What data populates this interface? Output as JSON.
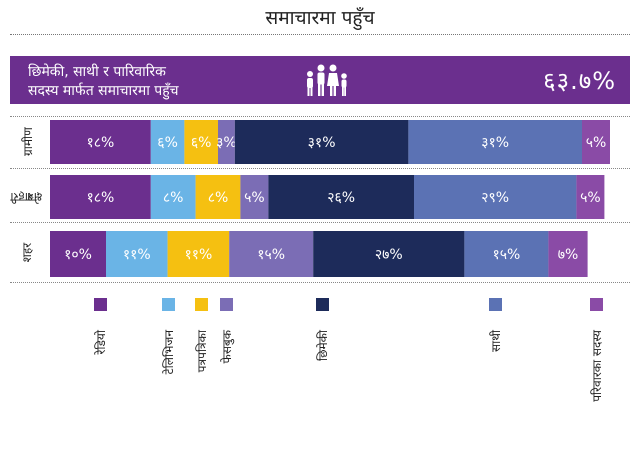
{
  "title": "समाचारमा पहुँच",
  "banner": {
    "line1": "छिमेकी, साथी र पारिवारिक",
    "line2": "सदस्य मार्फत समाचारमा पहुँच",
    "value_text": "६३.७%",
    "icon": "family-icon",
    "color": "#6b2f8e"
  },
  "chart_data": {
    "type": "bar",
    "orientation": "horizontal",
    "stacked": true,
    "categories": [
      "ग्रामीण",
      "शहरी क्षेत्र",
      "शहर"
    ],
    "series": [
      {
        "name": "रेडियो",
        "color": "#6b2f8e",
        "values": [
          18,
          18,
          10
        ],
        "labels": [
          "१८%",
          "१८%",
          "१०%"
        ]
      },
      {
        "name": "टेलिभिजन",
        "color": "#6ab4e6",
        "values": [
          6,
          8,
          11
        ],
        "labels": [
          "६%",
          "८%",
          "११%"
        ]
      },
      {
        "name": "पत्रपत्रिका",
        "color": "#f5c011",
        "values": [
          6,
          8,
          11
        ],
        "labels": [
          "६%",
          "८%",
          "११%"
        ]
      },
      {
        "name": "फेसबुक",
        "color": "#7b6db5",
        "values": [
          3,
          5,
          15
        ],
        "labels": [
          "३%",
          "५%",
          "१५%"
        ]
      },
      {
        "name": "छिमेकी",
        "color": "#1d2b5a",
        "values": [
          31,
          26,
          27
        ],
        "labels": [
          "३१%",
          "२६%",
          "२७%"
        ]
      },
      {
        "name": "साथी",
        "color": "#5b72b4",
        "values": [
          31,
          29,
          15
        ],
        "labels": [
          "३१%",
          "२९%",
          "१५%"
        ]
      },
      {
        "name": "परिवारका सदस्य",
        "color": "#8a4ba6",
        "values": [
          5,
          5,
          7
        ],
        "labels": [
          "५%",
          "५%",
          "७%"
        ]
      }
    ],
    "row_labels": [
      [
        "ग्रामीण"
      ],
      [
        "शहरी",
        "क्षेत्र"
      ],
      [
        "शहर"
      ]
    ],
    "xlim": [
      0,
      100
    ],
    "legend": "bottom"
  }
}
